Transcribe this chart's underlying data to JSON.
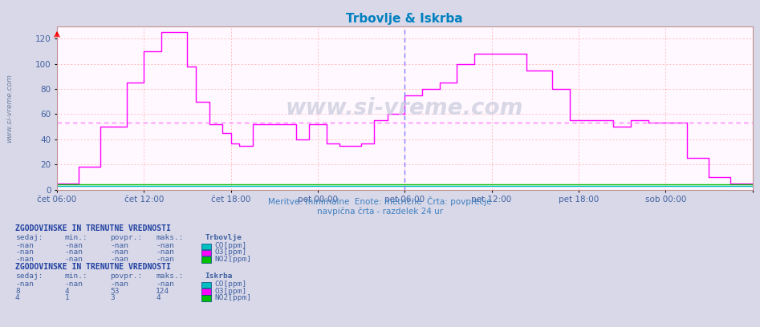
{
  "title": "Trbovlje & Iskrba",
  "title_color": "#0080c0",
  "fig_bg_color": "#d8d8e8",
  "plot_bg_color": "#fff8ff",
  "grid_color": "#ffaaaa",
  "ylim": [
    0,
    130
  ],
  "yticks": [
    0,
    20,
    40,
    60,
    80,
    100,
    120
  ],
  "xticklabels": [
    "čet 06:00",
    "čet 12:00",
    "čet 18:00",
    "pet 00:00",
    "pet 06:00",
    "pet 12:00",
    "pet 18:00",
    "sob 00:00",
    ""
  ],
  "xtick_positions": [
    0,
    2,
    4,
    6,
    8,
    10,
    12,
    14,
    16
  ],
  "xlim": [
    0,
    16
  ],
  "avg_line_y": 53,
  "vline_x": 8.0,
  "subtitle1": "Meritve: minimalne  Enote: metrične  Črta: povprečje",
  "subtitle2": "navpična črta - razdelek 24 ur",
  "subtitle_color": "#4080c0",
  "tick_color": "#4060a0",
  "o3_color": "#ff00ff",
  "co_color": "#00c0c0",
  "no2_color": "#00c000",
  "avg_color": "#ff80ff",
  "vline_color": "#8080ff",
  "side_label": "www.si-vreme.com",
  "watermark": "www.si-vreme.com",
  "o3_x": [
    0,
    0.5,
    0.5,
    1.0,
    1.0,
    1.6,
    1.6,
    2.0,
    2.0,
    2.4,
    2.4,
    2.8,
    2.8,
    3.0,
    3.0,
    3.2,
    3.2,
    3.5,
    3.5,
    3.8,
    3.8,
    4.0,
    4.0,
    4.2,
    4.2,
    4.5,
    4.5,
    5.5,
    5.5,
    5.8,
    5.8,
    6.2,
    6.2,
    6.5,
    6.5,
    7.0,
    7.0,
    7.3,
    7.3,
    7.6,
    7.6,
    8.0,
    8.0,
    8.4,
    8.4,
    8.8,
    8.8,
    9.2,
    9.2,
    9.6,
    9.6,
    10.2,
    10.2,
    10.8,
    10.8,
    11.4,
    11.4,
    11.8,
    11.8,
    12.2,
    12.2,
    12.8,
    12.8,
    13.2,
    13.2,
    13.6,
    13.6,
    14.0,
    14.0,
    14.5,
    14.5,
    15.0,
    15.0,
    15.5,
    15.5,
    16.0
  ],
  "o3_y": [
    5,
    5,
    18,
    18,
    50,
    50,
    85,
    85,
    110,
    110,
    125,
    125,
    125,
    125,
    98,
    98,
    70,
    70,
    52,
    52,
    45,
    45,
    37,
    37,
    35,
    35,
    52,
    52,
    40,
    40,
    52,
    52,
    37,
    37,
    35,
    35,
    37,
    37,
    55,
    55,
    60,
    60,
    75,
    75,
    80,
    80,
    85,
    85,
    100,
    100,
    108,
    108,
    108,
    108,
    95,
    95,
    80,
    80,
    55,
    55,
    55,
    55,
    50,
    50,
    55,
    55,
    53,
    53,
    53,
    53,
    25,
    25,
    10,
    10,
    5,
    5
  ],
  "co_y": 3,
  "no2_y": 4,
  "header_color": "#2040a0",
  "table_color": "#4060a0",
  "trb_rows": [
    [
      "-nan",
      "-nan",
      "-nan",
      "-nan"
    ],
    [
      "-nan",
      "-nan",
      "-nan",
      "-nan"
    ],
    [
      "-nan",
      "-nan",
      "-nan",
      "-nan"
    ]
  ],
  "isk_rows": [
    [
      "-nan",
      "-nan",
      "-nan",
      "-nan"
    ],
    [
      "8",
      "4",
      "53",
      "124"
    ],
    [
      "4",
      "1",
      "3",
      "4"
    ]
  ],
  "col_labels": [
    "sedaj:",
    "min.:",
    "povpr.:",
    "maks.:"
  ],
  "trb_series": [
    "CO[ppm]",
    "O3[ppm]",
    "NO2[ppm]"
  ],
  "isk_series": [
    "CO[ppm]",
    "O3[ppm]",
    "NO2[ppm]"
  ],
  "series_colors": [
    "#00c0c0",
    "#ff00ff",
    "#00c000"
  ]
}
